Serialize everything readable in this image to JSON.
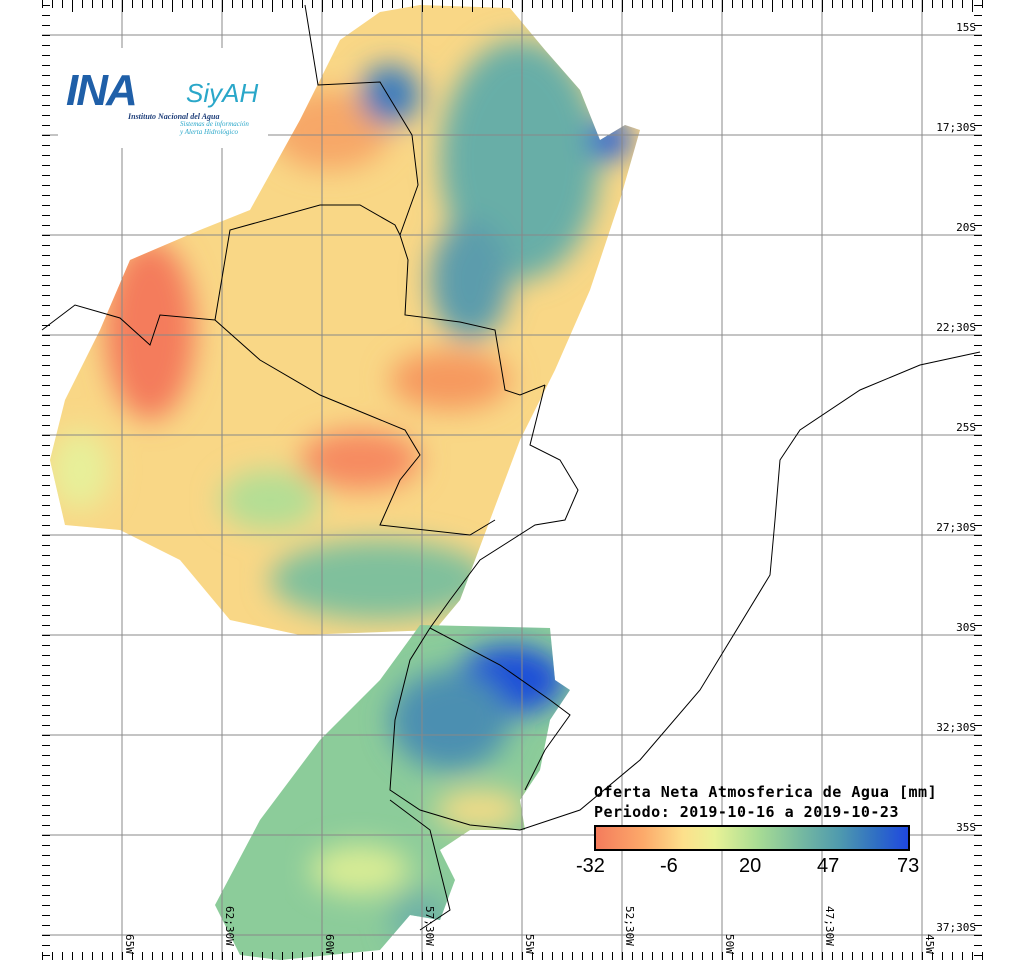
{
  "logo": {
    "name": "INA",
    "product": "SiyAH",
    "institution": "Instituto Nacional del Agua",
    "subtitle_line1": "Sistemas de información",
    "subtitle_line2": "y Alerta Hidrológico"
  },
  "legend": {
    "title": "Oferta Neta Atmosferica de Agua [mm]",
    "period": "Periodo: 2019-10-16 a 2019-10-23",
    "ticks": [
      "-32",
      "-6",
      "20",
      "47",
      "73"
    ],
    "colors": [
      "#f47c5c",
      "#fde08c",
      "#e9f296",
      "#78bba0",
      "#1f48e0"
    ]
  },
  "lat_labels": [
    "15S",
    "17;30S",
    "20S",
    "22;30S",
    "25S",
    "27;30S",
    "30S",
    "32;30S",
    "35S",
    "37;30S"
  ],
  "lon_labels": [
    "65W",
    "62;30W",
    "60W",
    "57;30W",
    "55W",
    "52;30W",
    "50W",
    "47;30W",
    "45W"
  ]
}
